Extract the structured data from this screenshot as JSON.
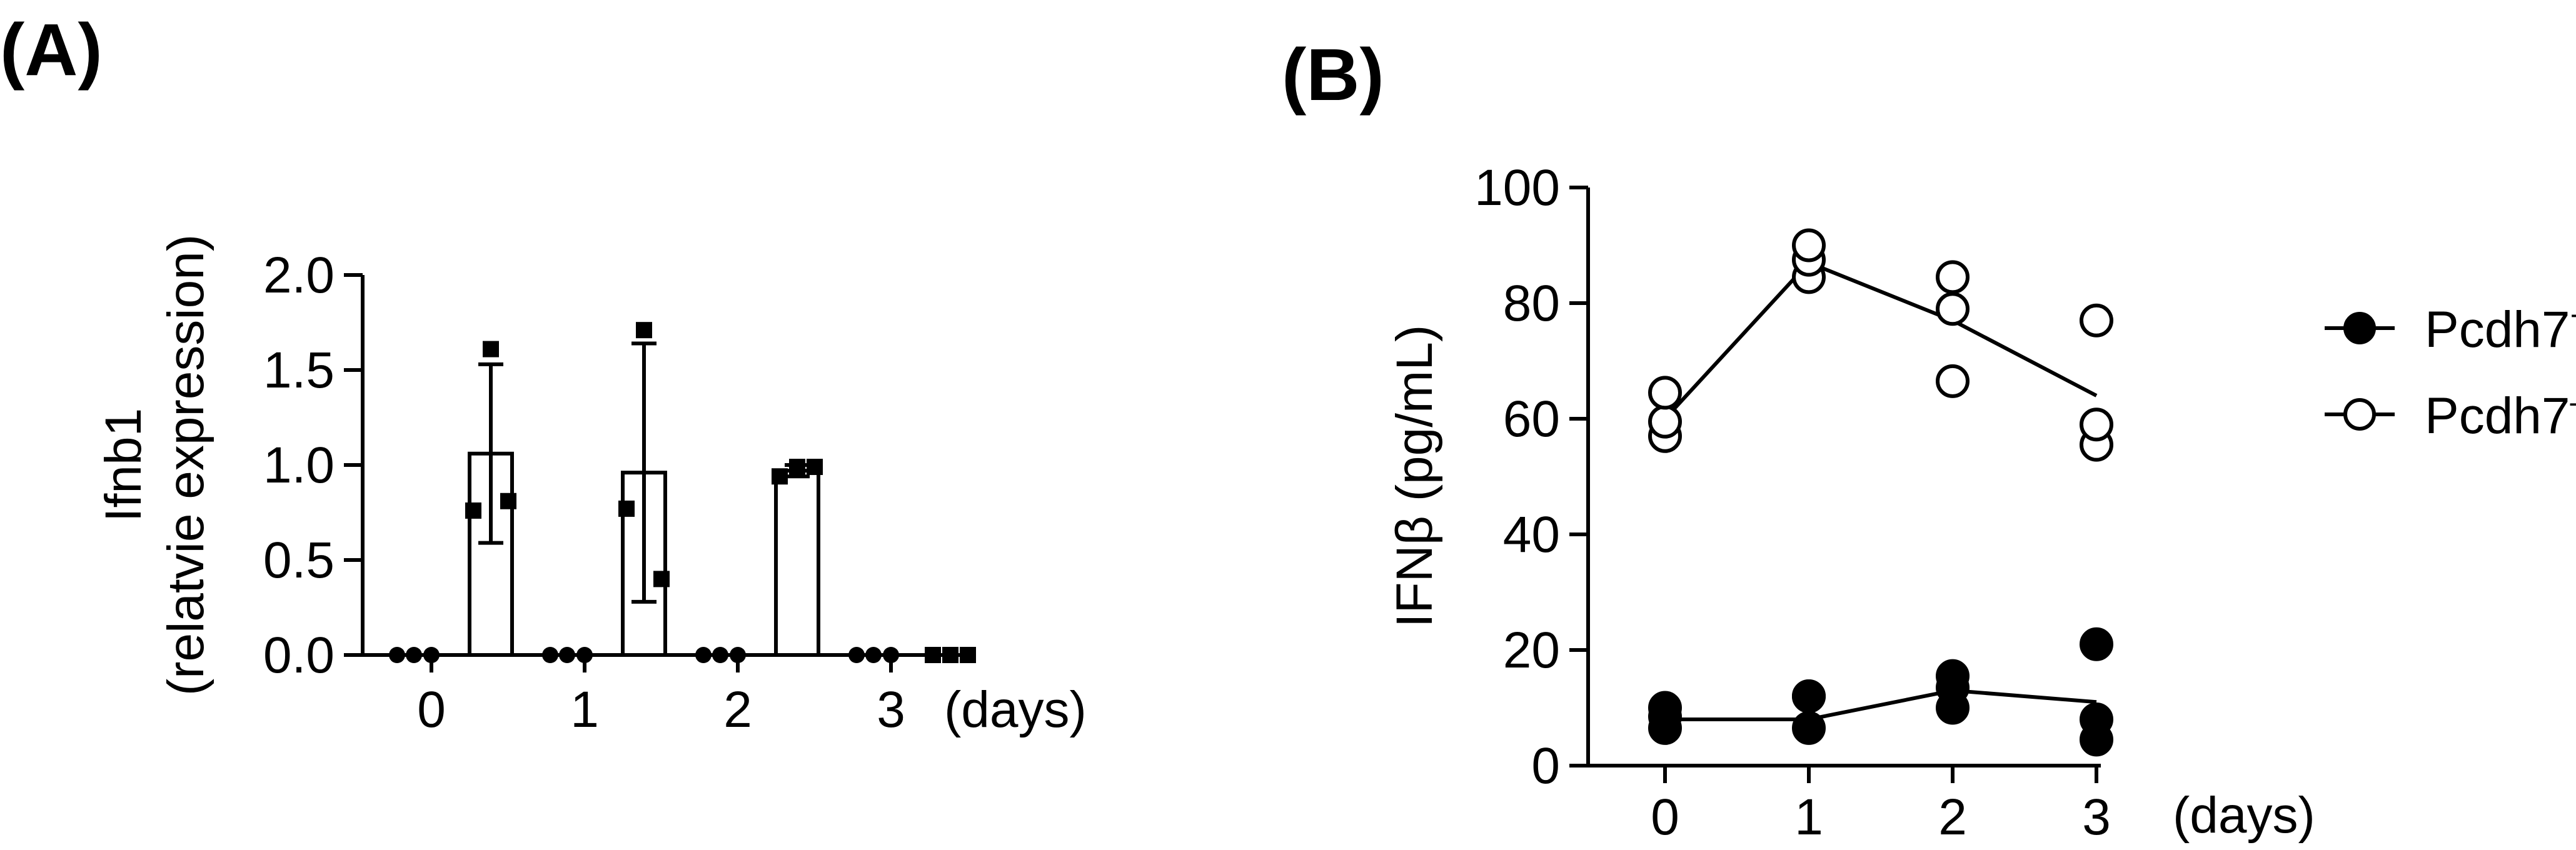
{
  "figure": {
    "panels": [
      {
        "label": "(A)"
      },
      {
        "label": "(B)"
      }
    ]
  },
  "chart_data": [
    {
      "type": "bar",
      "panel": "(A)",
      "ylabel_line1": "Ifnb1",
      "ylabel_line2": "(relatvie expression)",
      "xunit": "(days)",
      "categories": [
        "0",
        "1",
        "2",
        "3"
      ],
      "yticks": [
        "0.0",
        "0.5",
        "1.0",
        "1.5",
        "2.0"
      ],
      "ylim": [
        0,
        2.0
      ],
      "groups": [
        {
          "key": "pcdh7_wt",
          "marker": "filled-circle"
        },
        {
          "key": "pcdh7_ko",
          "marker": "filled-square",
          "bar": true
        }
      ],
      "series": [
        {
          "key": "pcdh7_wt",
          "values": [
            0,
            0,
            0,
            0
          ],
          "points": [
            [
              0,
              0,
              0
            ],
            [
              0,
              0,
              0
            ],
            [
              0,
              0,
              0
            ],
            [
              0,
              0,
              0
            ]
          ]
        },
        {
          "key": "pcdh7_ko",
          "values": [
            1.06,
            0.96,
            0.97,
            0
          ],
          "error": [
            0.47,
            0.68,
            0.03,
            0
          ],
          "points": [
            [
              0.76,
              1.61,
              0.81
            ],
            [
              0.77,
              1.71,
              0.4
            ],
            [
              0.94,
              0.99,
              0.99
            ],
            [
              0,
              0,
              0
            ]
          ]
        }
      ],
      "grid": false
    },
    {
      "type": "scatter",
      "panel": "(B)",
      "ylabel": "IFNβ (pg/mL)",
      "xunit": "(days)",
      "x": [
        0,
        1,
        2,
        3
      ],
      "categories": [
        "0",
        "1",
        "2",
        "3"
      ],
      "yticks": [
        "0",
        "20",
        "40",
        "60",
        "80",
        "100"
      ],
      "ylim": [
        0,
        100
      ],
      "legend_position": "right",
      "series": [
        {
          "name": "Pcdh7",
          "superscript": "+/+",
          "marker": "filled-circle",
          "means": [
            8,
            8,
            13,
            11
          ],
          "points": [
            [
              6.5,
              8.5,
              10
            ],
            [
              6.5,
              12,
              12
            ],
            [
              10,
              13.5,
              15.5
            ],
            [
              4.5,
              8,
              21
            ]
          ]
        },
        {
          "name": "Pcdh7",
          "superscript": "–/–",
          "marker": "open-circle",
          "means": [
            60,
            87,
            77,
            64
          ],
          "points": [
            [
              57,
              59.5,
              64.5
            ],
            [
              84.5,
              87.5,
              90
            ],
            [
              66.5,
              79,
              84.5
            ],
            [
              55.5,
              59,
              77
            ]
          ]
        }
      ],
      "grid": false
    }
  ]
}
